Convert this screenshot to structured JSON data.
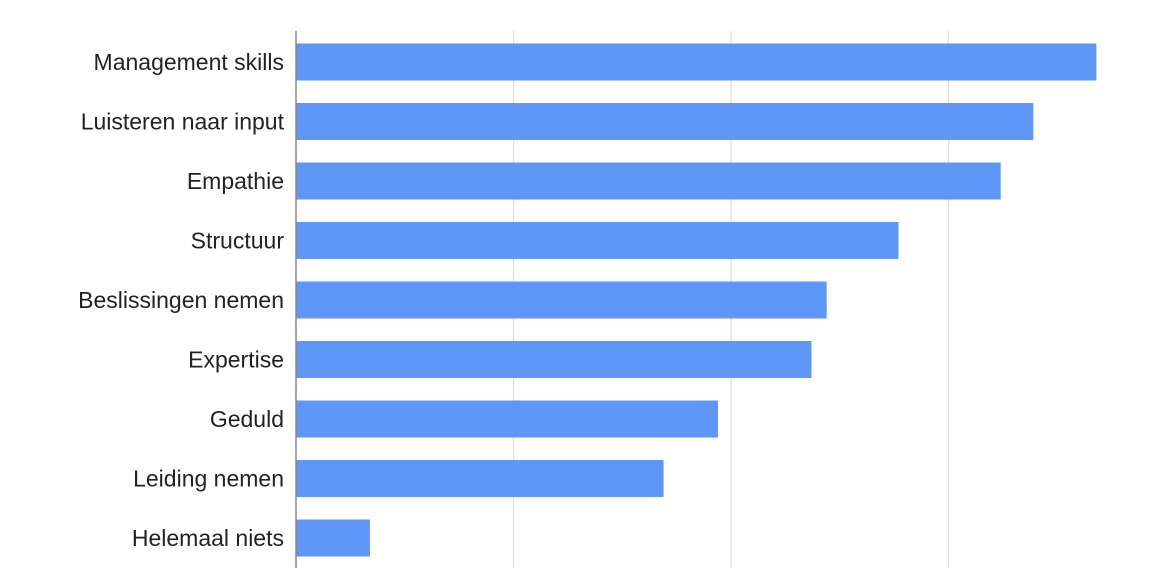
{
  "chart_data": {
    "type": "bar",
    "orientation": "horizontal",
    "title": "",
    "xlabel": "",
    "ylabel": "",
    "categories": [
      "Management skills",
      "Luisteren naar input",
      "Empathie",
      "Structuur",
      "Beslissingen nemen",
      "Expertise",
      "Geduld",
      "Leiding nemen",
      "Helemaal niets"
    ],
    "values": [
      3.68,
      3.39,
      3.24,
      2.77,
      2.44,
      2.37,
      1.94,
      1.69,
      0.34
    ],
    "xlim": [
      0,
      3.85
    ],
    "gridlines": [
      1,
      2,
      3
    ],
    "tick_labels_shown": false,
    "grid": true,
    "legend": "none",
    "colors": {
      "bar": "#5e97f6",
      "grid": "#dddddd",
      "axis": "#888888",
      "text": "#222222"
    }
  }
}
